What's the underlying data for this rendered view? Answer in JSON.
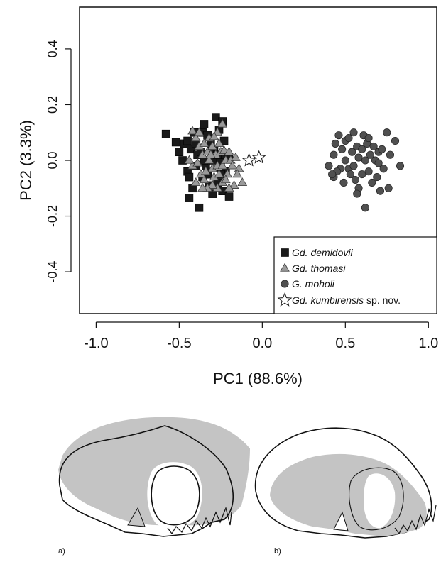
{
  "chart_data": {
    "type": "scatter",
    "xlabel": "PC1 (88.6%)",
    "ylabel": "PC2 (3.3%)",
    "xlim": [
      -1.1,
      1.05
    ],
    "ylim": [
      -0.55,
      0.55
    ],
    "xticks": [
      "-1.0",
      "-0.5",
      "0.0",
      "0.5",
      "1.0"
    ],
    "yticks": [
      "-0.4",
      "-0.2",
      "0.0",
      "0.2",
      "0.4"
    ],
    "xtick_values": [
      -1.0,
      -0.5,
      0.0,
      0.5,
      1.0
    ],
    "ytick_values": [
      -0.4,
      -0.2,
      0.0,
      0.2,
      0.4
    ],
    "grid": false,
    "legend_position": "bottom-right",
    "series": [
      {
        "name": "Gd. demidovii",
        "marker": "square",
        "color": "#1a1a1a",
        "points": [
          [
            -0.58,
            0.095
          ],
          [
            -0.52,
            0.065
          ],
          [
            -0.5,
            0.03
          ],
          [
            -0.47,
            0.06
          ],
          [
            -0.45,
            0.07
          ],
          [
            -0.43,
            0.04
          ],
          [
            -0.41,
            0.1
          ],
          [
            -0.4,
            0.06
          ],
          [
            -0.39,
            0.02
          ],
          [
            -0.37,
            0.03
          ],
          [
            -0.36,
            0.1
          ],
          [
            -0.35,
            0.13
          ],
          [
            -0.33,
            0.09
          ],
          [
            -0.31,
            0.06
          ],
          [
            -0.29,
            0.04
          ],
          [
            -0.28,
            0.155
          ],
          [
            -0.26,
            0.11
          ],
          [
            -0.25,
            0.0
          ],
          [
            -0.24,
            0.14
          ],
          [
            -0.23,
            0.07
          ],
          [
            -0.22,
            0.02
          ],
          [
            -0.3,
            0.0
          ],
          [
            -0.34,
            -0.02
          ],
          [
            -0.4,
            -0.02
          ],
          [
            -0.45,
            -0.04
          ],
          [
            -0.44,
            -0.06
          ],
          [
            -0.42,
            -0.1
          ],
          [
            -0.44,
            -0.135
          ],
          [
            -0.38,
            -0.17
          ],
          [
            -0.36,
            -0.06
          ],
          [
            -0.32,
            -0.09
          ],
          [
            -0.3,
            -0.12
          ],
          [
            -0.27,
            -0.08
          ],
          [
            -0.24,
            -0.11
          ],
          [
            -0.2,
            -0.13
          ],
          [
            -0.22,
            -0.04
          ],
          [
            -0.2,
            0.01
          ],
          [
            -0.25,
            -0.05
          ],
          [
            -0.35,
            0.0
          ],
          [
            -0.27,
            0.02
          ],
          [
            -0.48,
            0.0
          ],
          [
            -0.33,
            -0.05
          ]
        ]
      },
      {
        "name": "Gd. thomasi",
        "marker": "triangle",
        "color": "#9a9a9a",
        "points": [
          [
            -0.42,
            0.105
          ],
          [
            -0.4,
            0.08
          ],
          [
            -0.38,
            0.05
          ],
          [
            -0.36,
            0.02
          ],
          [
            -0.35,
            0.06
          ],
          [
            -0.33,
            0.03
          ],
          [
            -0.32,
            0.0
          ],
          [
            -0.3,
            0.05
          ],
          [
            -0.3,
            -0.03
          ],
          [
            -0.28,
            0.02
          ],
          [
            -0.27,
            -0.02
          ],
          [
            -0.26,
            0.06
          ],
          [
            -0.25,
            0.03
          ],
          [
            -0.24,
            -0.02
          ],
          [
            -0.23,
            0.035
          ],
          [
            -0.22,
            0.0
          ],
          [
            -0.21,
            -0.05
          ],
          [
            -0.2,
            0.03
          ],
          [
            -0.19,
            0.0
          ],
          [
            -0.18,
            -0.02
          ],
          [
            -0.16,
            0.01
          ],
          [
            -0.14,
            -0.03
          ],
          [
            -0.12,
            -0.08
          ],
          [
            -0.15,
            -0.05
          ],
          [
            -0.17,
            -0.09
          ],
          [
            -0.2,
            -0.1
          ],
          [
            -0.24,
            -0.08
          ],
          [
            -0.27,
            -0.1
          ],
          [
            -0.3,
            -0.09
          ],
          [
            -0.33,
            -0.1
          ],
          [
            -0.35,
            -0.07
          ],
          [
            -0.37,
            -0.05
          ],
          [
            -0.4,
            -0.08
          ],
          [
            -0.42,
            -0.02
          ],
          [
            -0.44,
            0.0
          ],
          [
            -0.39,
            -0.01
          ],
          [
            -0.34,
            -0.04
          ],
          [
            -0.29,
            -0.06
          ],
          [
            -0.26,
            -0.05
          ],
          [
            -0.22,
            -0.07
          ],
          [
            -0.24,
            0.13
          ],
          [
            -0.27,
            0.1
          ],
          [
            -0.32,
            0.08
          ],
          [
            -0.38,
            0.1
          ],
          [
            -0.36,
            -0.1
          ],
          [
            -0.31,
            0.02
          ],
          [
            -0.29,
            0.085
          ]
        ]
      },
      {
        "name": "G. moholi",
        "marker": "circle",
        "color": "#505050",
        "points": [
          [
            0.43,
            0.02
          ],
          [
            0.4,
            -0.02
          ],
          [
            0.44,
            0.06
          ],
          [
            0.46,
            0.09
          ],
          [
            0.47,
            -0.03
          ],
          [
            0.45,
            -0.04
          ],
          [
            0.43,
            -0.06
          ],
          [
            0.48,
            0.04
          ],
          [
            0.5,
            0.0
          ],
          [
            0.5,
            0.07
          ],
          [
            0.52,
            -0.03
          ],
          [
            0.52,
            0.08
          ],
          [
            0.54,
            0.03
          ],
          [
            0.55,
            -0.02
          ],
          [
            0.55,
            0.1
          ],
          [
            0.56,
            -0.07
          ],
          [
            0.57,
            0.05
          ],
          [
            0.58,
            0.01
          ],
          [
            0.58,
            -0.1
          ],
          [
            0.6,
            0.04
          ],
          [
            0.6,
            -0.05
          ],
          [
            0.61,
            0.09
          ],
          [
            0.62,
            0.0
          ],
          [
            0.62,
            -0.17
          ],
          [
            0.63,
            0.06
          ],
          [
            0.64,
            -0.04
          ],
          [
            0.65,
            0.02
          ],
          [
            0.66,
            -0.08
          ],
          [
            0.67,
            0.05
          ],
          [
            0.68,
            0.0
          ],
          [
            0.69,
            -0.06
          ],
          [
            0.7,
            0.03
          ],
          [
            0.71,
            -0.11
          ],
          [
            0.72,
            0.04
          ],
          [
            0.73,
            -0.03
          ],
          [
            0.75,
            0.1
          ],
          [
            0.76,
            -0.1
          ],
          [
            0.77,
            0.02
          ],
          [
            0.8,
            0.07
          ],
          [
            0.83,
            -0.02
          ],
          [
            0.49,
            -0.08
          ],
          [
            0.53,
            -0.05
          ],
          [
            0.57,
            -0.12
          ],
          [
            0.64,
            0.08
          ],
          [
            0.42,
            -0.05
          ],
          [
            0.7,
            -0.01
          ]
        ]
      },
      {
        "name": "Gd. kumbirensis sp. nov.",
        "marker": "star",
        "color": "#ffffff",
        "points": [
          [
            -0.08,
            0.0
          ],
          [
            -0.02,
            0.01
          ]
        ]
      }
    ]
  },
  "legend": {
    "entries": [
      {
        "prefix": "Gd. demidovii",
        "suffix": "",
        "marker": "square",
        "color": "#1a1a1a"
      },
      {
        "prefix": "Gd. thomasi",
        "suffix": "",
        "marker": "triangle",
        "color": "#9a9a9a"
      },
      {
        "prefix": "G. moholi",
        "suffix": "",
        "marker": "circle",
        "color": "#505050"
      },
      {
        "prefix": "Gd. kumbirensis",
        "suffix": " sp. nov.",
        "marker": "star",
        "color": "#ffffff"
      }
    ]
  },
  "panels": {
    "a_label": "a)",
    "b_label": "b)",
    "silhouette_color": "#c4c4c4",
    "outline_color": "#111111"
  }
}
